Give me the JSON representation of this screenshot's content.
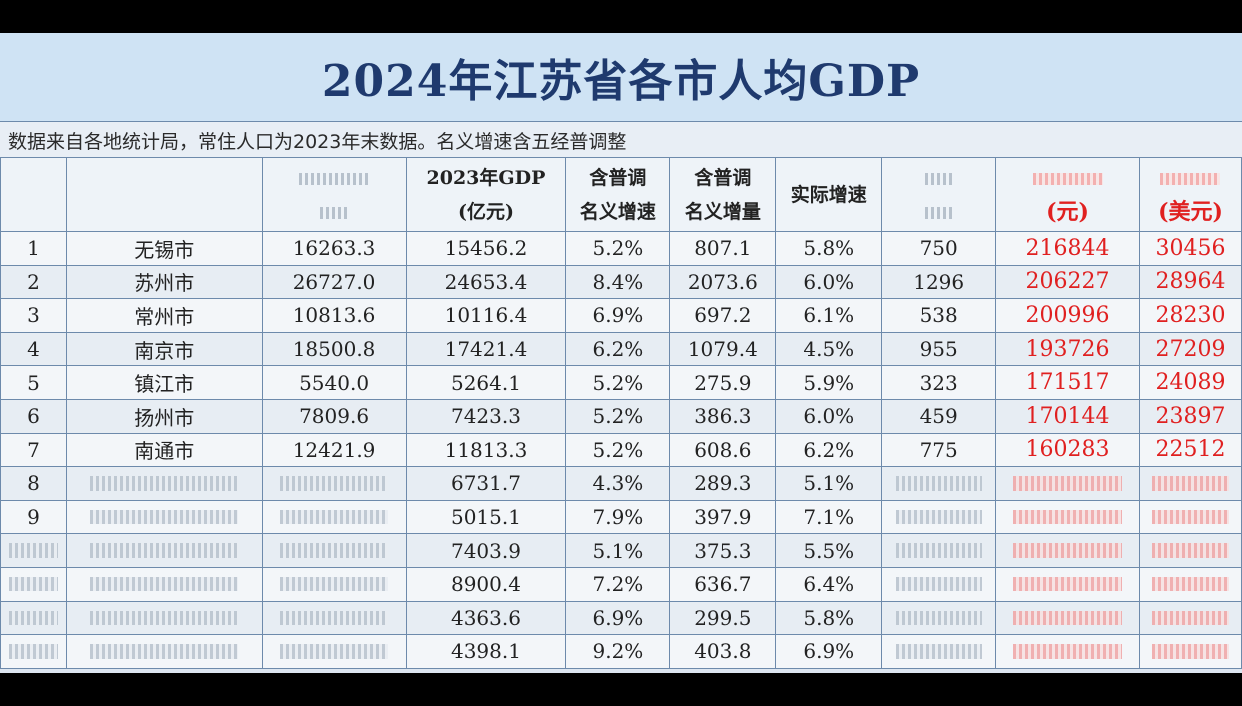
{
  "title": "2024年江苏省各市人均GDP",
  "note": "数据来自各地统计局，常住人口为2023年末数据。名义增速含五经普调整",
  "headers": {
    "gdp2023_line1": "2023年GDP",
    "gdp2023_line2": "(亿元)",
    "nominal_rate_line1": "含普调",
    "nominal_rate_line2": "名义增速",
    "nominal_inc_line1": "含普调",
    "nominal_inc_line2": "名义增量",
    "real_rate": "实际增速",
    "per_capita_cny_unit": "(元)",
    "per_capita_usd_unit": "(美元)"
  },
  "rows": [
    {
      "rank": "1",
      "city": "无锡市",
      "gdp2024": "16263.3",
      "gdp2023": "15456.2",
      "nominal_rate": "5.2%",
      "nominal_inc": "807.1",
      "real_rate": "5.8%",
      "population": "750",
      "per_capita_cny": "216844",
      "per_capita_usd": "30456"
    },
    {
      "rank": "2",
      "city": "苏州市",
      "gdp2024": "26727.0",
      "gdp2023": "24653.4",
      "nominal_rate": "8.4%",
      "nominal_inc": "2073.6",
      "real_rate": "6.0%",
      "population": "1296",
      "per_capita_cny": "206227",
      "per_capita_usd": "28964"
    },
    {
      "rank": "3",
      "city": "常州市",
      "gdp2024": "10813.6",
      "gdp2023": "10116.4",
      "nominal_rate": "6.9%",
      "nominal_inc": "697.2",
      "real_rate": "6.1%",
      "population": "538",
      "per_capita_cny": "200996",
      "per_capita_usd": "28230"
    },
    {
      "rank": "4",
      "city": "南京市",
      "gdp2024": "18500.8",
      "gdp2023": "17421.4",
      "nominal_rate": "6.2%",
      "nominal_inc": "1079.4",
      "real_rate": "4.5%",
      "population": "955",
      "per_capita_cny": "193726",
      "per_capita_usd": "27209"
    },
    {
      "rank": "5",
      "city": "镇江市",
      "gdp2024": "5540.0",
      "gdp2023": "5264.1",
      "nominal_rate": "5.2%",
      "nominal_inc": "275.9",
      "real_rate": "5.9%",
      "population": "323",
      "per_capita_cny": "171517",
      "per_capita_usd": "24089"
    },
    {
      "rank": "6",
      "city": "扬州市",
      "gdp2024": "7809.6",
      "gdp2023": "7423.3",
      "nominal_rate": "5.2%",
      "nominal_inc": "386.3",
      "real_rate": "6.0%",
      "population": "459",
      "per_capita_cny": "170144",
      "per_capita_usd": "23897"
    },
    {
      "rank": "7",
      "city": "南通市",
      "gdp2024": "12421.9",
      "gdp2023": "11813.3",
      "nominal_rate": "5.2%",
      "nominal_inc": "608.6",
      "real_rate": "6.2%",
      "population": "775",
      "per_capita_cny": "160283",
      "per_capita_usd": "22512"
    },
    {
      "rank": "8",
      "city": "",
      "gdp2024": "",
      "gdp2023": "6731.7",
      "nominal_rate": "4.3%",
      "nominal_inc": "289.3",
      "real_rate": "5.1%",
      "population": "",
      "per_capita_cny": "",
      "per_capita_usd": ""
    },
    {
      "rank": "9",
      "city": "",
      "gdp2024": "",
      "gdp2023": "5015.1",
      "nominal_rate": "7.9%",
      "nominal_inc": "397.9",
      "real_rate": "7.1%",
      "population": "",
      "per_capita_cny": "",
      "per_capita_usd": ""
    },
    {
      "rank": "",
      "city": "",
      "gdp2024": "",
      "gdp2023": "7403.9",
      "nominal_rate": "5.1%",
      "nominal_inc": "375.3",
      "real_rate": "5.5%",
      "population": "",
      "per_capita_cny": "",
      "per_capita_usd": ""
    },
    {
      "rank": "",
      "city": "",
      "gdp2024": "",
      "gdp2023": "8900.4",
      "nominal_rate": "7.2%",
      "nominal_inc": "636.7",
      "real_rate": "6.4%",
      "population": "",
      "per_capita_cny": "",
      "per_capita_usd": ""
    },
    {
      "rank": "",
      "city": "",
      "gdp2024": "",
      "gdp2023": "4363.6",
      "nominal_rate": "6.9%",
      "nominal_inc": "299.5",
      "real_rate": "5.8%",
      "population": "",
      "per_capita_cny": "",
      "per_capita_usd": ""
    },
    {
      "rank": "",
      "city": "",
      "gdp2024": "",
      "gdp2023": "4398.1",
      "nominal_rate": "9.2%",
      "nominal_inc": "403.8",
      "real_rate": "6.9%",
      "population": "",
      "per_capita_cny": "",
      "per_capita_usd": ""
    }
  ],
  "colors": {
    "title": "#1f3a6e",
    "highlight": "#e02020",
    "title_bg": "#cfe3f4",
    "border": "#6d8aab"
  }
}
